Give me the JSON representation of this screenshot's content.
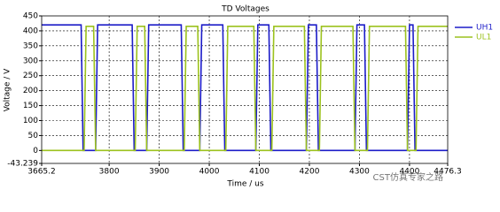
{
  "chart_data": {
    "type": "line",
    "title": "TD Voltages",
    "x_label": "Time / us",
    "y_label": "Voltage / V",
    "watermark": "CST仿真专家之路",
    "xlim": [
      3665.2,
      4476.3
    ],
    "xticks": [
      3665.2,
      3800,
      3900,
      4000,
      4100,
      4200,
      4300,
      4400,
      4476.3
    ],
    "ylim": [
      -43.239,
      450
    ],
    "yticks": [
      -43.239,
      0,
      50,
      100,
      150,
      200,
      250,
      300,
      350,
      400,
      450
    ],
    "grid": true,
    "legend": "right",
    "series": [
      {
        "name": "UH1",
        "color": "#1c1cc8",
        "x": [
          3665.2,
          3744,
          3748,
          3773,
          3777,
          3846,
          3850,
          3875,
          3879,
          3944,
          3948,
          3981,
          3985,
          4027,
          4031,
          4093,
          4097,
          4119,
          4123,
          4194,
          4198,
          4214,
          4218,
          4291,
          4295,
          4310,
          4314,
          4396,
          4400,
          4407,
          4411,
          4476.3
        ],
        "values": [
          420,
          420,
          0,
          0,
          420,
          420,
          0,
          0,
          420,
          420,
          0,
          0,
          420,
          420,
          0,
          0,
          420,
          420,
          0,
          0,
          420,
          420,
          0,
          0,
          420,
          420,
          0,
          0,
          420,
          420,
          0,
          0
        ]
      },
      {
        "name": "UL1",
        "color": "#9cc21e",
        "x": [
          3665.2,
          3750,
          3754,
          3769,
          3773,
          3852,
          3856,
          3871,
          3875,
          3950,
          3954,
          3977,
          3981,
          4033,
          4037,
          4089,
          4093,
          4125,
          4129,
          4190,
          4194,
          4220,
          4224,
          4287,
          4291,
          4316,
          4320,
          4392,
          4396,
          4413,
          4417,
          4476.3
        ],
        "values": [
          0,
          0,
          415,
          415,
          0,
          0,
          415,
          415,
          0,
          0,
          415,
          415,
          0,
          0,
          415,
          415,
          0,
          0,
          415,
          415,
          0,
          0,
          415,
          415,
          0,
          0,
          415,
          415,
          0,
          0,
          415,
          415
        ]
      }
    ]
  }
}
